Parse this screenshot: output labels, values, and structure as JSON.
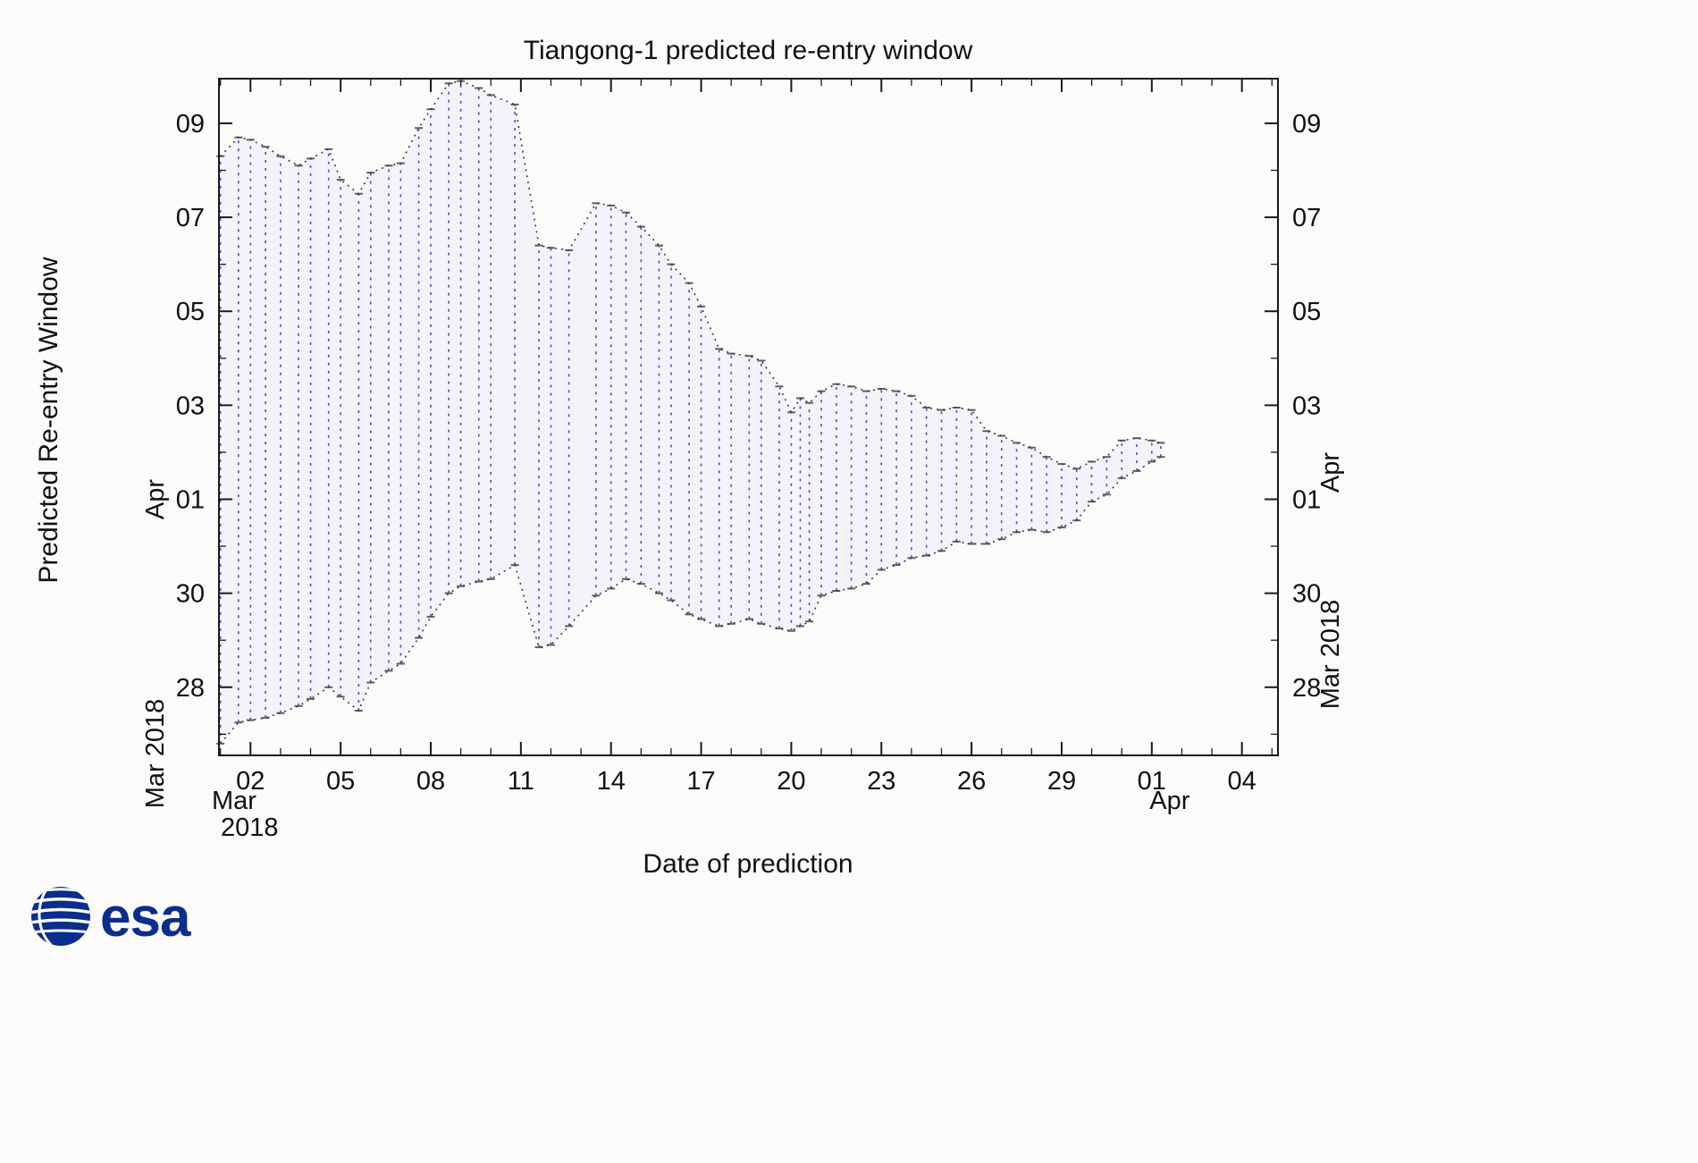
{
  "branding": {
    "esa_text": "esa"
  },
  "colors": {
    "background": "#fcfbfa",
    "fill": "#f5f3fa",
    "envelope": "#3a3a3a",
    "window_line": "#4c4cc4",
    "cap": "#5f5f5f",
    "frame": "#1a1a1a",
    "tick_text": "#111111",
    "esa_blue": "#0b2d8c"
  },
  "chart_data": {
    "type": "area",
    "title": "Tiangong-1 predicted re-entry window",
    "xlabel": "Date of prediction",
    "ylabel": "Predicted Re-entry Window",
    "legend": "none",
    "grid": false,
    "units_note": "x and y values are day-of-March-2018; values above 31 are April (32 = Apr 01)",
    "x_domain": [
      0.95,
      36.2
    ],
    "y_domain": [
      26.55,
      40.95
    ],
    "x_minor_step": 1,
    "y_minor_step": 1,
    "x_ticks": [
      {
        "v": 2,
        "label": "02"
      },
      {
        "v": 5,
        "label": "05"
      },
      {
        "v": 8,
        "label": "08"
      },
      {
        "v": 11,
        "label": "11"
      },
      {
        "v": 14,
        "label": "14"
      },
      {
        "v": 17,
        "label": "17"
      },
      {
        "v": 20,
        "label": "20"
      },
      {
        "v": 23,
        "label": "23"
      },
      {
        "v": 26,
        "label": "26"
      },
      {
        "v": 29,
        "label": "29"
      },
      {
        "v": 32,
        "label": "01"
      },
      {
        "v": 35,
        "label": "04"
      }
    ],
    "y_ticks": [
      {
        "v": 28,
        "label": "28"
      },
      {
        "v": 30,
        "label": "30"
      },
      {
        "v": 32,
        "label": "01"
      },
      {
        "v": 34,
        "label": "03"
      },
      {
        "v": 36,
        "label": "05"
      },
      {
        "v": 38,
        "label": "07"
      },
      {
        "v": 40,
        "label": "09"
      }
    ],
    "axis_annotations": {
      "x_start_line1": "Mar",
      "x_start_line2": "2018",
      "x_end": "Apr",
      "left_mid": "Apr",
      "left_bottom": "Mar 2018",
      "right_mid": "Apr",
      "right_bottom": "Mar 2018"
    },
    "columns": [
      "date_of_prediction_day",
      "window_start_day",
      "window_end_day"
    ],
    "predictions": [
      [
        1.0,
        26.8,
        39.3
      ],
      [
        1.6,
        27.25,
        39.7
      ],
      [
        2.0,
        27.3,
        39.65
      ],
      [
        2.5,
        27.35,
        39.5
      ],
      [
        3.0,
        27.45,
        39.3
      ],
      [
        3.6,
        27.6,
        39.1
      ],
      [
        4.0,
        27.75,
        39.25
      ],
      [
        4.6,
        28.0,
        39.45
      ],
      [
        5.0,
        27.8,
        38.8
      ],
      [
        5.6,
        27.5,
        38.5
      ],
      [
        6.0,
        28.1,
        38.95
      ],
      [
        6.6,
        28.35,
        39.1
      ],
      [
        7.0,
        28.5,
        39.15
      ],
      [
        7.6,
        29.05,
        39.9
      ],
      [
        8.0,
        29.5,
        40.3
      ],
      [
        8.6,
        30.0,
        40.85
      ],
      [
        9.0,
        30.15,
        40.9
      ],
      [
        9.6,
        30.25,
        40.75
      ],
      [
        10.0,
        30.3,
        40.6
      ],
      [
        10.8,
        30.6,
        40.4
      ],
      [
        11.6,
        28.85,
        37.4
      ],
      [
        12.0,
        28.9,
        37.35
      ],
      [
        12.6,
        29.3,
        37.3
      ],
      [
        13.5,
        29.95,
        38.3
      ],
      [
        14.0,
        30.1,
        38.25
      ],
      [
        14.5,
        30.3,
        38.1
      ],
      [
        15.0,
        30.2,
        37.8
      ],
      [
        15.6,
        30.0,
        37.4
      ],
      [
        16.0,
        29.85,
        37.0
      ],
      [
        16.6,
        29.55,
        36.6
      ],
      [
        17.0,
        29.45,
        36.1
      ],
      [
        17.6,
        29.3,
        35.2
      ],
      [
        18.0,
        29.35,
        35.1
      ],
      [
        18.6,
        29.45,
        35.05
      ],
      [
        19.0,
        29.35,
        34.95
      ],
      [
        19.6,
        29.25,
        34.4
      ],
      [
        20.0,
        29.2,
        33.85
      ],
      [
        20.3,
        29.3,
        34.15
      ],
      [
        20.6,
        29.4,
        34.05
      ],
      [
        21.0,
        29.95,
        34.3
      ],
      [
        21.5,
        30.05,
        34.45
      ],
      [
        22.0,
        30.1,
        34.4
      ],
      [
        22.5,
        30.2,
        34.3
      ],
      [
        23.0,
        30.5,
        34.35
      ],
      [
        23.5,
        30.6,
        34.3
      ],
      [
        24.0,
        30.75,
        34.2
      ],
      [
        24.5,
        30.8,
        33.95
      ],
      [
        25.0,
        30.9,
        33.9
      ],
      [
        25.5,
        31.1,
        33.95
      ],
      [
        26.0,
        31.05,
        33.9
      ],
      [
        26.5,
        31.05,
        33.45
      ],
      [
        27.0,
        31.15,
        33.35
      ],
      [
        27.5,
        31.3,
        33.2
      ],
      [
        28.0,
        31.35,
        33.1
      ],
      [
        28.5,
        31.3,
        32.9
      ],
      [
        29.0,
        31.4,
        32.75
      ],
      [
        29.5,
        31.55,
        32.65
      ],
      [
        30.0,
        31.95,
        32.8
      ],
      [
        30.5,
        32.1,
        32.9
      ],
      [
        31.0,
        32.45,
        33.25
      ],
      [
        31.5,
        32.6,
        33.3
      ],
      [
        32.0,
        32.8,
        33.25
      ],
      [
        32.3,
        32.9,
        33.2
      ]
    ]
  }
}
